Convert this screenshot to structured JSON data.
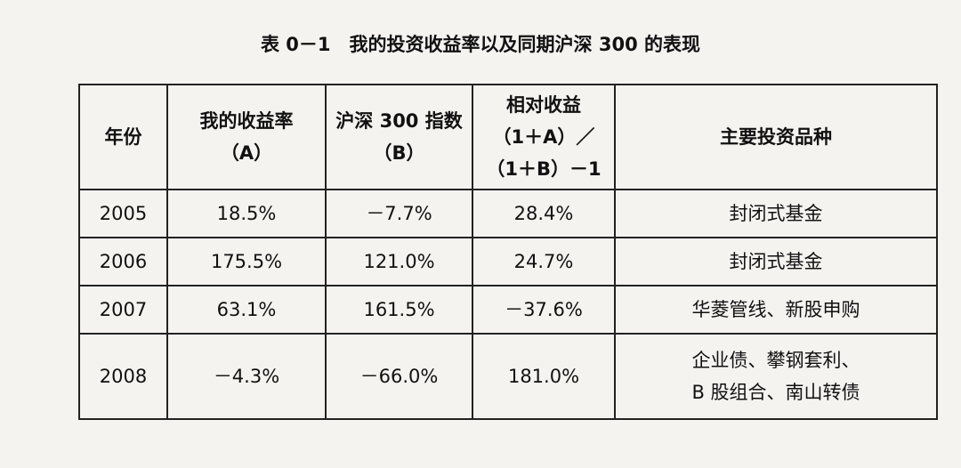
{
  "title": "表 0－1　我的投资收益率以及同期沪深 300 的表现",
  "table": {
    "header": [
      "年份",
      [
        "我的收益率",
        "（A）"
      ],
      [
        "沪深 300 指数",
        "（B）"
      ],
      [
        "相对收益",
        "（1＋A）／",
        "（1＋B）－1"
      ],
      "主要投资品种"
    ],
    "rows": [
      [
        "2005",
        "18.5%",
        "－7.7%",
        "28.4%",
        "封闭式基金"
      ],
      [
        "2006",
        "175.5%",
        "121.0%",
        "24.7%",
        "封闭式基金"
      ],
      [
        "2007",
        "63.1%",
        "161.5%",
        "－37.6%",
        "华菱管线、新股申购"
      ],
      [
        "2008",
        "－4.3%",
        "－66.0%",
        "181.0%",
        [
          "企业债、攀钢套利、",
          "B 股组合、南山转债"
        ]
      ]
    ]
  }
}
